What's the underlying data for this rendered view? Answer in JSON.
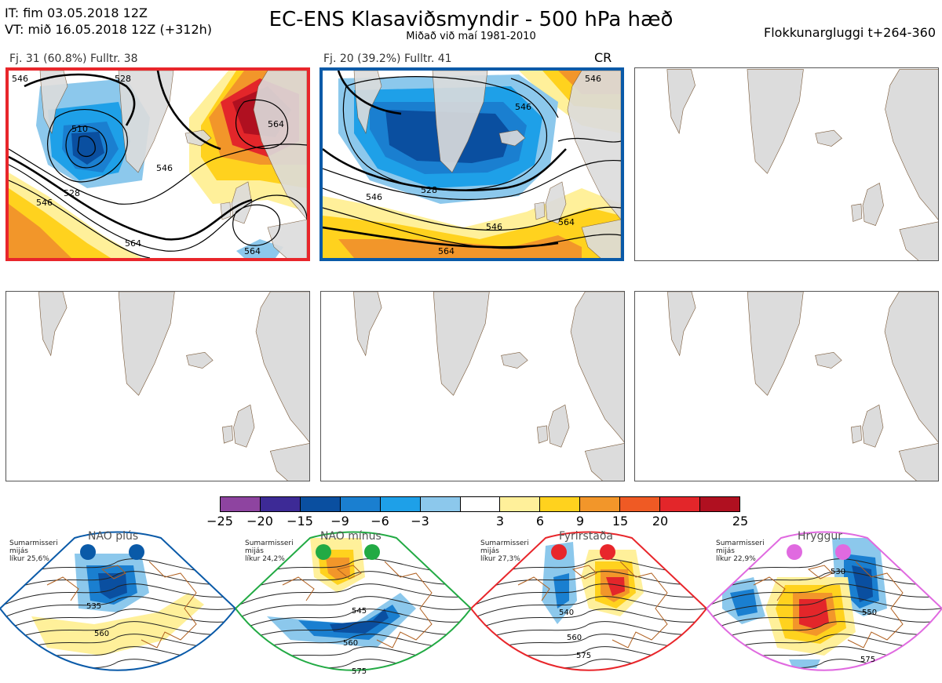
{
  "header": {
    "it_line": "IT: fim 03.05.2018 12Z",
    "vt_line": "VT: mið 16.05.2018 12Z  (+312h)",
    "title": "EC-ENS Klasaviðsmyndir - 500 hPa hæð",
    "subtitle": "Miðað við maí 1981-2010",
    "window": "Flokkunargluggi t+264-360"
  },
  "clusters": [
    {
      "label": "Fj. 31 (60.8%)   Fulltr. 38",
      "contours": [
        "528",
        "546",
        "510",
        "564",
        "546",
        "528",
        "546",
        "564",
        "564"
      ]
    },
    {
      "label": "Fj. 20 (39.2%)   Fulltr. 41",
      "tag": "CR",
      "contours": [
        "546",
        "528",
        "546",
        "546",
        "546",
        "564",
        "564"
      ]
    }
  ],
  "colorbar": {
    "colors": [
      "#8e44a0",
      "#3d2a96",
      "#0a4fa0",
      "#1a7fd0",
      "#1ea0e8",
      "#8cc8ec",
      "#ffffff",
      "#fff09a",
      "#ffd21e",
      "#f2962a",
      "#ef5a24",
      "#e3262a",
      "#b01020"
    ],
    "ticks": [
      "−25",
      "−20",
      "−15",
      "−9",
      "−6",
      "−3",
      "3",
      "6",
      "9",
      "15",
      "20",
      "25"
    ]
  },
  "regimes": [
    {
      "title": "NAO plús",
      "note_lines": [
        "Sumarmisseri",
        "mijás",
        "líkur 25,6%"
      ],
      "color": "#0a5aa8",
      "contours": [
        "535",
        "560"
      ]
    },
    {
      "title": "NAO mínus",
      "note_lines": [
        "Sumarmisseri",
        "mijás",
        "líkur 24,2%"
      ],
      "color": "#22aa44",
      "contours": [
        "545",
        "560",
        "575"
      ]
    },
    {
      "title": "Fyrirstaða",
      "note_lines": [
        "Sumarmisseri",
        "mijás",
        "líkur 27,3%"
      ],
      "color": "#e8262b",
      "contours": [
        "540",
        "560",
        "575"
      ]
    },
    {
      "title": "Hryggur",
      "note_lines": [
        "Sumarmisseri",
        "mijás",
        "líkur 22,9%"
      ],
      "color": "#e06ae0",
      "contours": [
        "530",
        "550",
        "575"
      ]
    }
  ]
}
